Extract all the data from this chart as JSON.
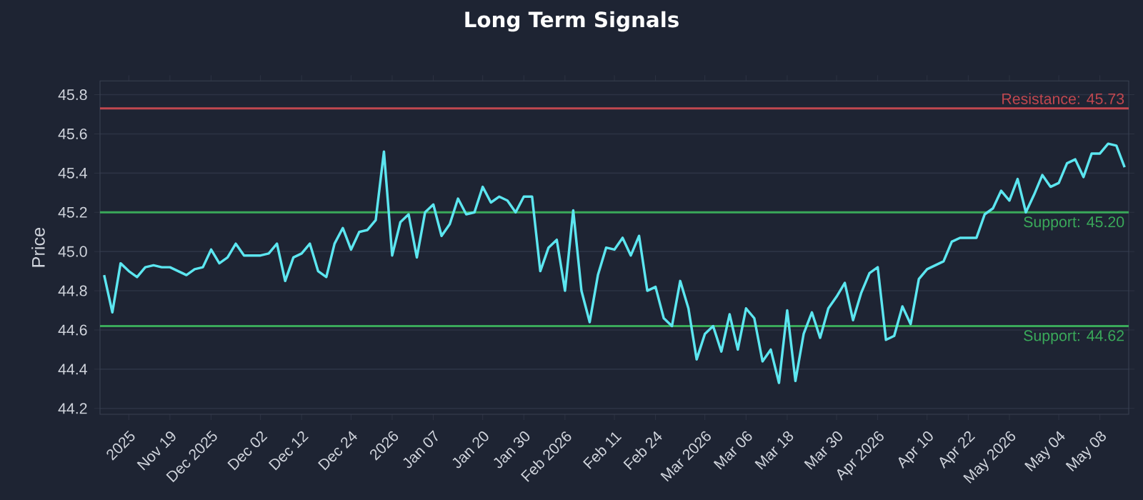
{
  "chart_data": {
    "type": "line",
    "title": "Long Term Signals",
    "ylabel": "Price",
    "categories": [
      null,
      null,
      null,
      "2025",
      null,
      null,
      null,
      null,
      "Nov 19",
      null,
      null,
      null,
      null,
      "Dec 2025",
      null,
      null,
      null,
      null,
      null,
      "Dec 02",
      null,
      null,
      null,
      null,
      "Dec 12",
      null,
      null,
      null,
      null,
      null,
      "Dec 24",
      null,
      null,
      null,
      null,
      "2026",
      null,
      null,
      null,
      null,
      "Jan 07",
      null,
      null,
      null,
      null,
      null,
      "Jan 20",
      null,
      null,
      null,
      null,
      "Jan 30",
      null,
      null,
      null,
      null,
      "Feb 2026",
      null,
      null,
      null,
      null,
      null,
      "Feb 11",
      null,
      null,
      null,
      null,
      "Feb 24",
      null,
      null,
      null,
      null,
      null,
      "Mar 2026",
      null,
      null,
      null,
      null,
      "Mar 06",
      null,
      null,
      null,
      null,
      "Mar 18",
      null,
      null,
      null,
      null,
      null,
      "Mar 30",
      null,
      null,
      null,
      null,
      "Apr 2026",
      null,
      null,
      null,
      null,
      null,
      "Apr 10",
      null,
      null,
      null,
      null,
      "Apr 22",
      null,
      null,
      null,
      null,
      "May 2026",
      null,
      null,
      null,
      null,
      null,
      "May 04",
      null,
      null,
      null,
      null,
      "May 08",
      null,
      null,
      null
    ],
    "series": [
      {
        "color": "#5ce6f0",
        "values": [
          44.88,
          44.69,
          44.94,
          44.9,
          44.87,
          44.92,
          44.93,
          44.92,
          44.92,
          44.9,
          44.88,
          44.91,
          44.92,
          45.01,
          44.94,
          44.97,
          45.04,
          44.98,
          44.98,
          44.98,
          44.99,
          45.04,
          44.85,
          44.97,
          44.99,
          45.04,
          44.9,
          44.87,
          45.04,
          45.12,
          45.01,
          45.1,
          45.11,
          45.16,
          45.51,
          44.98,
          45.15,
          45.19,
          44.97,
          45.2,
          45.24,
          45.08,
          45.14,
          45.27,
          45.19,
          45.2,
          45.33,
          45.25,
          45.28,
          45.26,
          45.2,
          45.28,
          45.28,
          44.9,
          45.02,
          45.06,
          44.8,
          45.21,
          44.8,
          44.64,
          44.88,
          45.02,
          45.01,
          45.07,
          44.98,
          45.08,
          44.8,
          44.82,
          44.66,
          44.62,
          44.85,
          44.71,
          44.45,
          44.58,
          44.62,
          44.49,
          44.68,
          44.5,
          44.71,
          44.66,
          44.44,
          44.5,
          44.33,
          44.7,
          44.34,
          44.58,
          44.69,
          44.56,
          44.71,
          44.77,
          44.84,
          44.65,
          44.79,
          44.89,
          44.92,
          44.55,
          44.57,
          44.72,
          44.63,
          44.86,
          44.91,
          44.93,
          44.95,
          45.05,
          45.07,
          45.07,
          45.07,
          45.19,
          45.22,
          45.31,
          45.26,
          45.37,
          45.2,
          45.29,
          45.39,
          45.33,
          45.35,
          45.45,
          45.47,
          45.38,
          45.5,
          45.5,
          45.55,
          45.54,
          45.43
        ]
      }
    ],
    "ylim": [
      44.17,
      45.87
    ],
    "yticks": [
      {
        "value": 44.2,
        "label": "44.2"
      },
      {
        "value": 44.4,
        "label": "44.4"
      },
      {
        "value": 44.6,
        "label": "44.6"
      },
      {
        "value": 44.8,
        "label": "44.8"
      },
      {
        "value": 45.0,
        "label": "45.0"
      },
      {
        "value": 45.2,
        "label": "45.2"
      },
      {
        "value": 45.4,
        "label": "45.4"
      },
      {
        "value": 45.6,
        "label": "45.6"
      },
      {
        "value": 45.8,
        "label": "45.8"
      }
    ],
    "grid": "y",
    "marker": "none",
    "line_style": "solid",
    "ref_lines": [
      {
        "axis": "y",
        "value": 45.73,
        "label": "Resistance: 45.73",
        "color": "#c0474f"
      },
      {
        "axis": "y",
        "value": 45.2,
        "label": "Support: 45.20",
        "color": "#3aa95a"
      },
      {
        "axis": "y",
        "value": 44.62,
        "label": "Support: 44.62",
        "color": "#3aa95a"
      }
    ]
  }
}
